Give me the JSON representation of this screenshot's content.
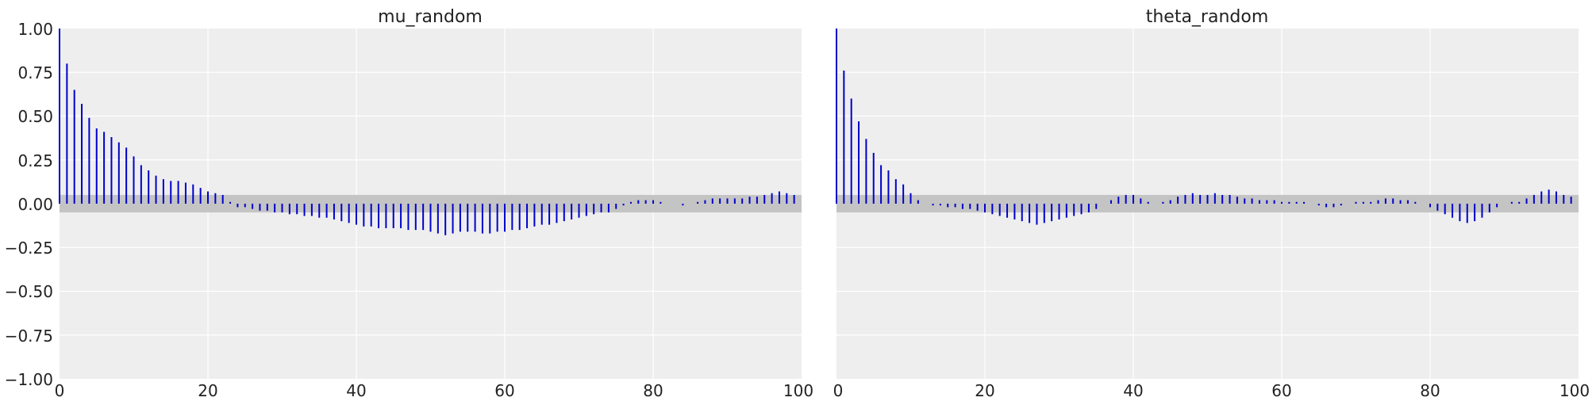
{
  "colors": {
    "panel_bg": "#eeeeee",
    "grid": "#ffffff",
    "band": "#c4c4c4",
    "stem": "#0000cc",
    "text": "#222222"
  },
  "chart_data": [
    {
      "type": "bar",
      "title": "mu_random",
      "xlabel": "",
      "ylabel": "",
      "xlim": [
        0,
        100
      ],
      "ylim": [
        -1.0,
        1.0
      ],
      "x_ticks": [
        "0",
        "20",
        "40",
        "60",
        "80",
        "100"
      ],
      "y_ticks": [
        "1.00",
        "0.75",
        "0.50",
        "0.25",
        "0.00",
        "−0.25",
        "−0.50",
        "−0.75",
        "−1.00"
      ],
      "grid": true,
      "confidence_band": [
        -0.05,
        0.05
      ],
      "x": [
        0,
        1,
        2,
        3,
        4,
        5,
        6,
        7,
        8,
        9,
        10,
        11,
        12,
        13,
        14,
        15,
        16,
        17,
        18,
        19,
        20,
        21,
        22,
        23,
        24,
        25,
        26,
        27,
        28,
        29,
        30,
        31,
        32,
        33,
        34,
        35,
        36,
        37,
        38,
        39,
        40,
        41,
        42,
        43,
        44,
        45,
        46,
        47,
        48,
        49,
        50,
        51,
        52,
        53,
        54,
        55,
        56,
        57,
        58,
        59,
        60,
        61,
        62,
        63,
        64,
        65,
        66,
        67,
        68,
        69,
        70,
        71,
        72,
        73,
        74,
        75,
        76,
        77,
        78,
        79,
        80,
        81,
        82,
        83,
        84,
        85,
        86,
        87,
        88,
        89,
        90,
        91,
        92,
        93,
        94,
        95,
        96,
        97,
        98,
        99
      ],
      "values": [
        1.0,
        0.8,
        0.65,
        0.57,
        0.49,
        0.43,
        0.41,
        0.38,
        0.35,
        0.32,
        0.27,
        0.22,
        0.19,
        0.16,
        0.14,
        0.13,
        0.13,
        0.12,
        0.11,
        0.09,
        0.07,
        0.06,
        0.05,
        0.01,
        -0.02,
        -0.02,
        -0.03,
        -0.04,
        -0.04,
        -0.05,
        -0.05,
        -0.06,
        -0.06,
        -0.07,
        -0.07,
        -0.08,
        -0.08,
        -0.09,
        -0.1,
        -0.11,
        -0.12,
        -0.13,
        -0.13,
        -0.14,
        -0.14,
        -0.14,
        -0.14,
        -0.15,
        -0.15,
        -0.15,
        -0.16,
        -0.17,
        -0.18,
        -0.17,
        -0.16,
        -0.16,
        -0.16,
        -0.17,
        -0.17,
        -0.16,
        -0.16,
        -0.15,
        -0.15,
        -0.14,
        -0.13,
        -0.12,
        -0.12,
        -0.11,
        -0.1,
        -0.09,
        -0.08,
        -0.07,
        -0.06,
        -0.05,
        -0.05,
        -0.03,
        -0.01,
        0.01,
        0.02,
        0.02,
        0.02,
        0.01,
        0.0,
        0.0,
        -0.01,
        0.0,
        0.01,
        0.02,
        0.03,
        0.03,
        0.03,
        0.03,
        0.03,
        0.04,
        0.04,
        0.05,
        0.06,
        0.07,
        0.06,
        0.05
      ]
    },
    {
      "type": "bar",
      "title": "theta_random",
      "xlabel": "",
      "ylabel": "",
      "xlim": [
        0,
        100
      ],
      "ylim": [
        -1.0,
        1.0
      ],
      "x_ticks": [
        "0",
        "20",
        "40",
        "60",
        "80",
        "100"
      ],
      "grid": true,
      "confidence_band": [
        -0.05,
        0.05
      ],
      "x": [
        0,
        1,
        2,
        3,
        4,
        5,
        6,
        7,
        8,
        9,
        10,
        11,
        12,
        13,
        14,
        15,
        16,
        17,
        18,
        19,
        20,
        21,
        22,
        23,
        24,
        25,
        26,
        27,
        28,
        29,
        30,
        31,
        32,
        33,
        34,
        35,
        36,
        37,
        38,
        39,
        40,
        41,
        42,
        43,
        44,
        45,
        46,
        47,
        48,
        49,
        50,
        51,
        52,
        53,
        54,
        55,
        56,
        57,
        58,
        59,
        60,
        61,
        62,
        63,
        64,
        65,
        66,
        67,
        68,
        69,
        70,
        71,
        72,
        73,
        74,
        75,
        76,
        77,
        78,
        79,
        80,
        81,
        82,
        83,
        84,
        85,
        86,
        87,
        88,
        89,
        90,
        91,
        92,
        93,
        94,
        95,
        96,
        97,
        98,
        99
      ],
      "values": [
        1.0,
        0.76,
        0.6,
        0.47,
        0.37,
        0.29,
        0.22,
        0.19,
        0.14,
        0.11,
        0.06,
        0.02,
        0.0,
        -0.01,
        -0.01,
        -0.02,
        -0.02,
        -0.03,
        -0.03,
        -0.04,
        -0.05,
        -0.06,
        -0.07,
        -0.08,
        -0.09,
        -0.1,
        -0.11,
        -0.12,
        -0.11,
        -0.1,
        -0.09,
        -0.08,
        -0.07,
        -0.06,
        -0.05,
        -0.03,
        0.0,
        0.02,
        0.04,
        0.05,
        0.05,
        0.03,
        0.01,
        0.0,
        0.01,
        0.02,
        0.04,
        0.05,
        0.06,
        0.05,
        0.05,
        0.06,
        0.05,
        0.05,
        0.04,
        0.03,
        0.03,
        0.02,
        0.02,
        0.02,
        0.01,
        0.01,
        0.01,
        0.01,
        0.0,
        -0.01,
        -0.02,
        -0.02,
        -0.01,
        0.0,
        0.01,
        0.01,
        0.01,
        0.02,
        0.03,
        0.03,
        0.02,
        0.02,
        0.01,
        0.0,
        -0.02,
        -0.04,
        -0.06,
        -0.08,
        -0.1,
        -0.11,
        -0.1,
        -0.08,
        -0.05,
        -0.02,
        0.0,
        0.01,
        0.01,
        0.03,
        0.05,
        0.07,
        0.08,
        0.07,
        0.05,
        0.04
      ]
    }
  ]
}
